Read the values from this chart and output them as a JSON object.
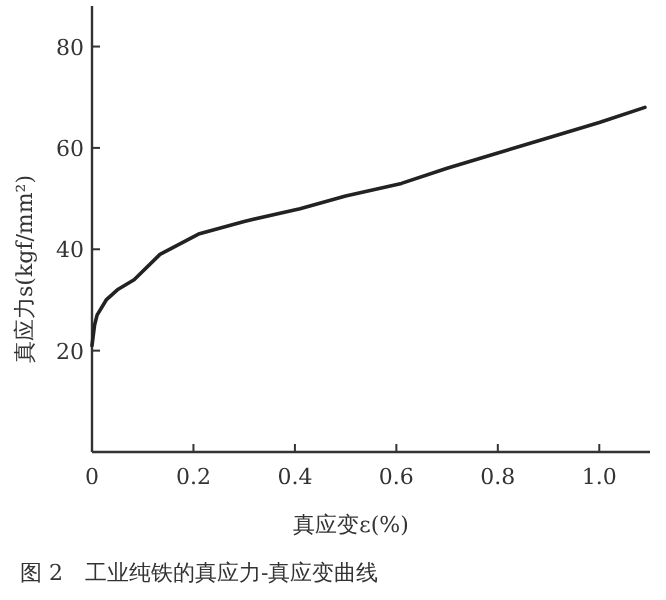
{
  "chart_data": {
    "type": "line",
    "title": "图 2　工业纯铁的真应力-真应变曲线",
    "xlabel": "真应变ε(%)",
    "ylabel": "真应力s(kgf/mm²)",
    "xlim": [
      0,
      1.1
    ],
    "ylim": [
      0,
      88
    ],
    "xticks": [
      0,
      0.2,
      0.4,
      0.6,
      {
        "value": 1,
        "label": "1.0"
      },
      0.8
    ],
    "yticks": [
      20,
      40,
      60,
      80
    ],
    "series": [
      {
        "color": "#222222",
        "x": [
          0,
          0.005,
          0.01,
          0.028,
          0.05,
          0.083,
          0.134,
          0.21,
          0.3,
          0.41,
          0.5,
          0.61,
          0.7,
          0.8,
          0.9,
          1.0,
          1.09
        ],
        "values": [
          21,
          25,
          27,
          30,
          32,
          34,
          39,
          43,
          45.5,
          48,
          50.5,
          53,
          56,
          59,
          62,
          65,
          68
        ]
      }
    ]
  }
}
